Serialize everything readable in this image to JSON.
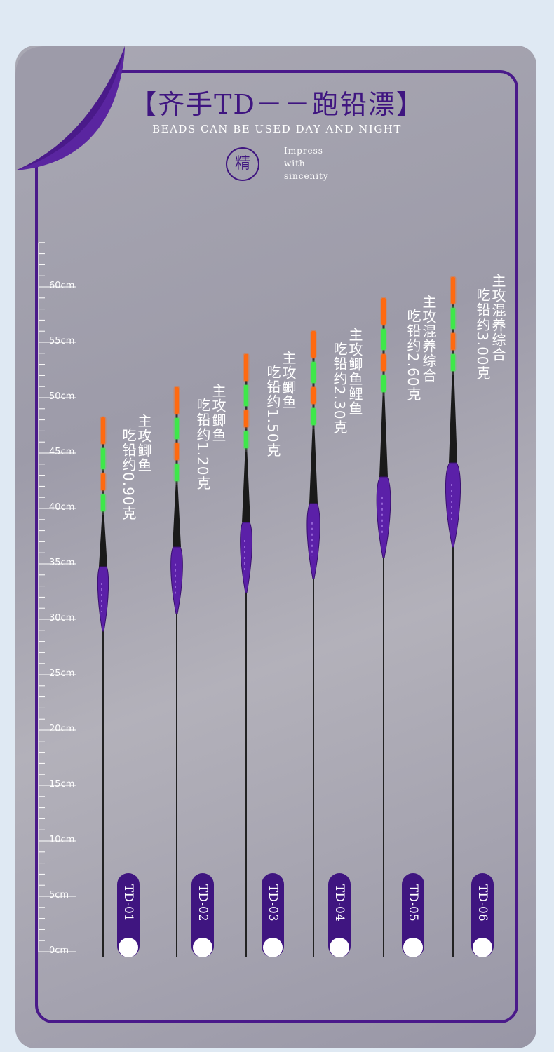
{
  "header": {
    "title": "【齐手TD－－跑铅漂】",
    "subtitle": "BEADS CAN BE USED DAY AND NIGHT",
    "seal": "精",
    "tagline": [
      "Impress",
      "with",
      "sincenity"
    ]
  },
  "ruler": {
    "labels": [
      "0cm",
      "5cm",
      "10cm",
      "15cm",
      "20cm",
      "25cm",
      "30cm",
      "35cm",
      "40cm",
      "45cm",
      "50cm",
      "55cm",
      "60cm"
    ]
  },
  "floats": [
    {
      "code": "TD-01",
      "target": "主攻鲫鱼",
      "weight": "吃铅约0.90克"
    },
    {
      "code": "TD-02",
      "target": "主攻鲫鱼",
      "weight": "吃铅约1.20克"
    },
    {
      "code": "TD-03",
      "target": "主攻鲫鱼",
      "weight": "吃铅约1.50克"
    },
    {
      "code": "TD-04",
      "target": "主攻鲫鱼鲤鱼",
      "weight": "吃铅约2.30克"
    },
    {
      "code": "TD-05",
      "target": "主攻混养综合",
      "weight": "吃铅约2.60克"
    },
    {
      "code": "TD-06",
      "target": "主攻混养综合",
      "weight": "吃铅约3.00克"
    }
  ]
}
